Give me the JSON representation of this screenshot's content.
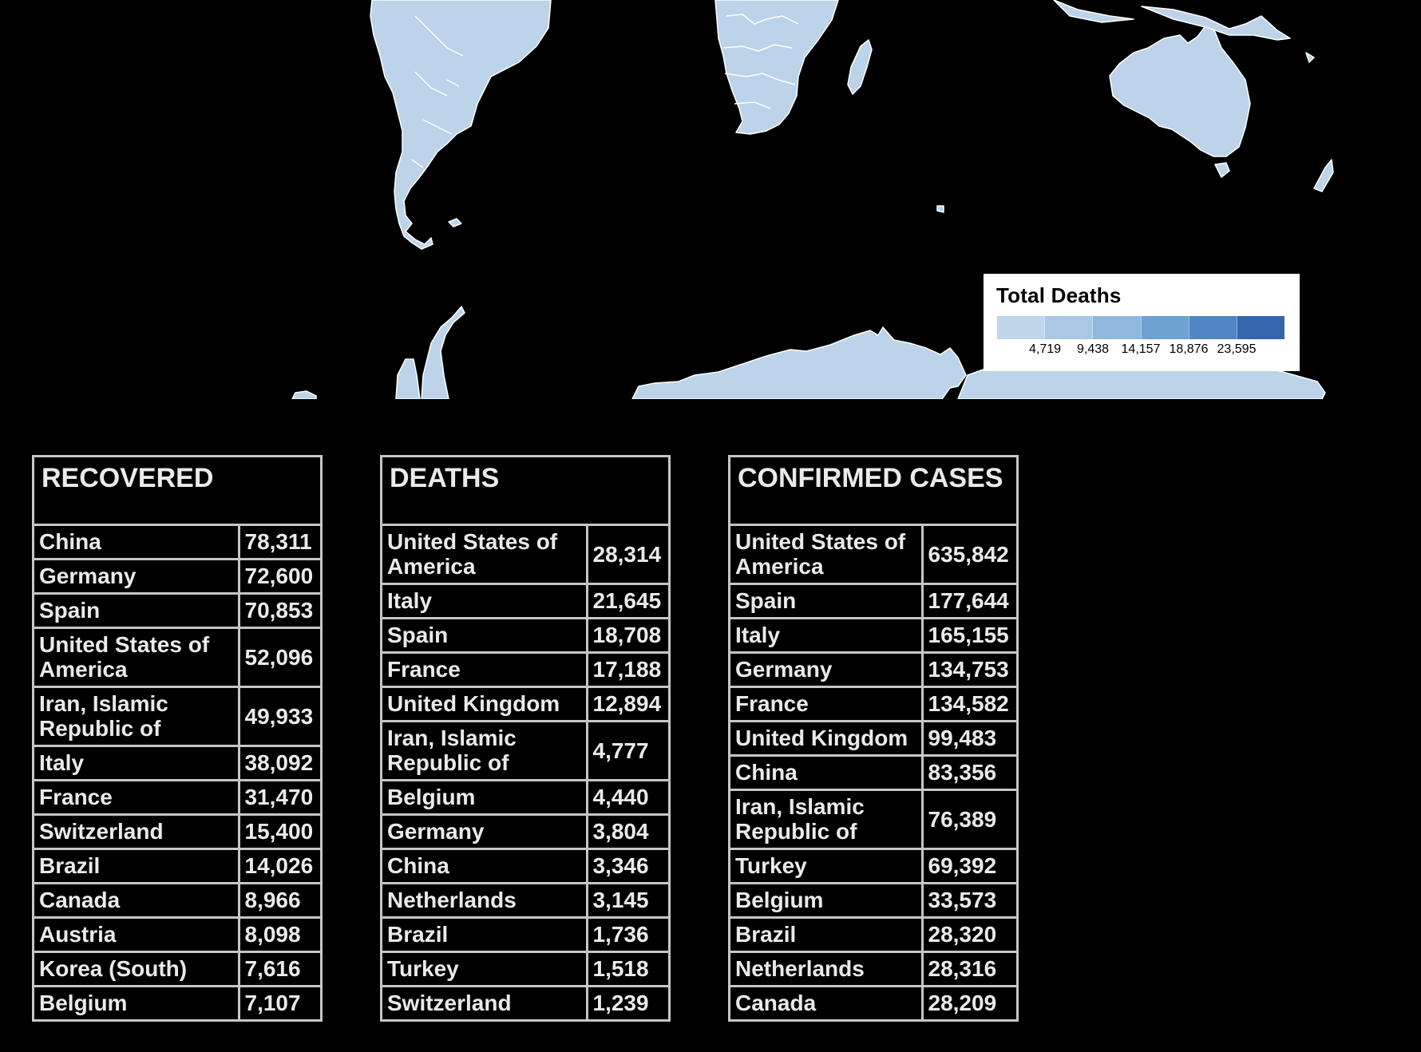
{
  "legend": {
    "title": "Total Deaths",
    "scale": [
      "#c0d6ea",
      "#a8c8e4",
      "#8fb8dc",
      "#6fa1d1",
      "#4f86c3",
      "#3566ac"
    ],
    "ticks": [
      "4,719",
      "9,438",
      "14,157",
      "18,876",
      "23,595"
    ]
  },
  "map": {
    "land_color": "#bcd3e9",
    "border_color": "#ffffff",
    "background": "#000000"
  },
  "tables": [
    {
      "title": "RECOVERED",
      "rows": [
        {
          "country": "China",
          "value": "78,311"
        },
        {
          "country": "Germany",
          "value": "72,600"
        },
        {
          "country": "Spain",
          "value": "70,853"
        },
        {
          "country": "United States of America",
          "value": "52,096"
        },
        {
          "country": "Iran, Islamic Republic of",
          "value": "49,933"
        },
        {
          "country": "Italy",
          "value": "38,092"
        },
        {
          "country": "France",
          "value": "31,470"
        },
        {
          "country": "Switzerland",
          "value": "15,400"
        },
        {
          "country": "Brazil",
          "value": "14,026"
        },
        {
          "country": "Canada",
          "value": "8,966"
        },
        {
          "country": "Austria",
          "value": "8,098"
        },
        {
          "country": "Korea (South)",
          "value": "7,616"
        },
        {
          "country": "Belgium",
          "value": "7,107"
        }
      ]
    },
    {
      "title": "DEATHS",
      "rows": [
        {
          "country": "United States of America",
          "value": "28,314"
        },
        {
          "country": "Italy",
          "value": "21,645"
        },
        {
          "country": "Spain",
          "value": "18,708"
        },
        {
          "country": "France",
          "value": "17,188"
        },
        {
          "country": "United Kingdom",
          "value": "12,894"
        },
        {
          "country": "Iran, Islamic Republic of",
          "value": "4,777"
        },
        {
          "country": "Belgium",
          "value": "4,440"
        },
        {
          "country": "Germany",
          "value": "3,804"
        },
        {
          "country": "China",
          "value": "3,346"
        },
        {
          "country": "Netherlands",
          "value": "3,145"
        },
        {
          "country": "Brazil",
          "value": "1,736"
        },
        {
          "country": "Turkey",
          "value": "1,518"
        },
        {
          "country": "Switzerland",
          "value": "1,239"
        }
      ]
    },
    {
      "title": "CONFIRMED CASES",
      "rows": [
        {
          "country": "United States of America",
          "value": "635,842"
        },
        {
          "country": "Spain",
          "value": "177,644"
        },
        {
          "country": "Italy",
          "value": "165,155"
        },
        {
          "country": "Germany",
          "value": "134,753"
        },
        {
          "country": "France",
          "value": "134,582"
        },
        {
          "country": "United Kingdom",
          "value": "99,483"
        },
        {
          "country": "China",
          "value": "83,356"
        },
        {
          "country": "Iran, Islamic Republic of",
          "value": "76,389"
        },
        {
          "country": "Turkey",
          "value": "69,392"
        },
        {
          "country": "Belgium",
          "value": "33,573"
        },
        {
          "country": "Brazil",
          "value": "28,320"
        },
        {
          "country": "Netherlands",
          "value": "28,316"
        },
        {
          "country": "Canada",
          "value": "28,209"
        }
      ]
    }
  ]
}
